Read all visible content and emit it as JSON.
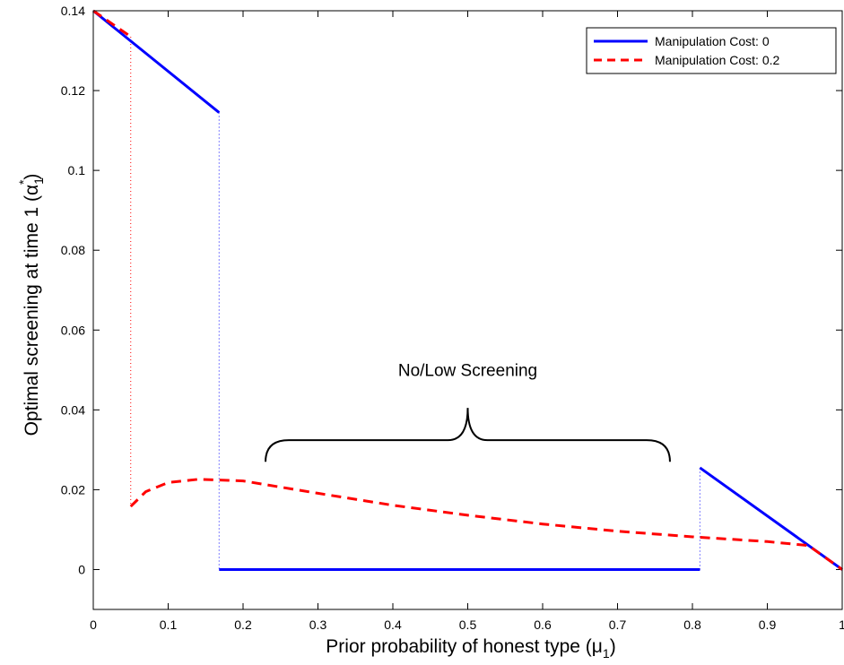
{
  "chart_data": {
    "type": "line",
    "title": "",
    "xlabel": "Prior probability of honest type (μ",
    "xlabel_sub": "1",
    "xlabel_close": ")",
    "ylabel": "Optimal screening at time 1 (α",
    "ylabel_sub": "1",
    "ylabel_sup": "*",
    "ylabel_close": ")",
    "xlim": [
      0,
      1
    ],
    "ylim": [
      -0.01,
      0.14
    ],
    "grid": false,
    "legend_position": "top-right",
    "x_ticks": [
      0,
      0.1,
      0.2,
      0.3,
      0.4,
      0.5,
      0.6,
      0.7,
      0.8,
      0.9,
      1
    ],
    "x_tick_labels": [
      "0",
      "0.1",
      "0.2",
      "0.3",
      "0.4",
      "0.5",
      "0.6",
      "0.7",
      "0.8",
      "0.9",
      "1"
    ],
    "y_ticks": [
      0,
      0.02,
      0.04,
      0.06,
      0.08,
      0.1,
      0.12,
      0.14
    ],
    "y_tick_labels": [
      "0",
      "0.02",
      "0.04",
      "0.06",
      "0.08",
      "0.1",
      "0.12",
      "0.14"
    ],
    "series": [
      {
        "name": "Manipulation Cost: 0",
        "color": "#0000ff",
        "style": "solid",
        "segments": [
          [
            [
              0,
              0.14
            ],
            [
              0.168,
              0.1145
            ]
          ],
          [
            [
              0.168,
              0
            ],
            [
              0.81,
              0
            ]
          ],
          [
            [
              0.81,
              0.0255
            ],
            [
              1,
              0
            ]
          ]
        ],
        "jumps": [
          [
            [
              0.168,
              0.1145
            ],
            [
              0.168,
              0
            ]
          ],
          [
            [
              0.81,
              0
            ],
            [
              0.81,
              0.0255
            ]
          ]
        ]
      },
      {
        "name": "Manipulation Cost: 0.2",
        "color": "#ff0000",
        "style": "dashed",
        "segments": [
          [
            [
              0,
              0.14
            ],
            [
              0.05,
              0.1335
            ]
          ],
          [
            [
              0.05,
              0.0158
            ],
            [
              0.07,
              0.0195
            ],
            [
              0.1,
              0.0218
            ],
            [
              0.14,
              0.0226
            ],
            [
              0.2,
              0.0222
            ],
            [
              0.3,
              0.0191
            ],
            [
              0.4,
              0.0161
            ],
            [
              0.5,
              0.0136
            ],
            [
              0.6,
              0.0114
            ],
            [
              0.7,
              0.0096
            ],
            [
              0.8,
              0.0082
            ],
            [
              0.9,
              0.007
            ],
            [
              0.955,
              0.006
            ],
            [
              1,
              0
            ]
          ]
        ],
        "jumps": [
          [
            [
              0.05,
              0.1335
            ],
            [
              0.05,
              0.0158
            ]
          ]
        ]
      }
    ],
    "annotations": [
      {
        "text": "No/Low Screening",
        "x": 0.5,
        "y": 0.0485
      }
    ],
    "brace": {
      "x_start": 0.23,
      "x_end": 0.77,
      "y_bottom": 0.027,
      "y_top": 0.0405
    }
  }
}
